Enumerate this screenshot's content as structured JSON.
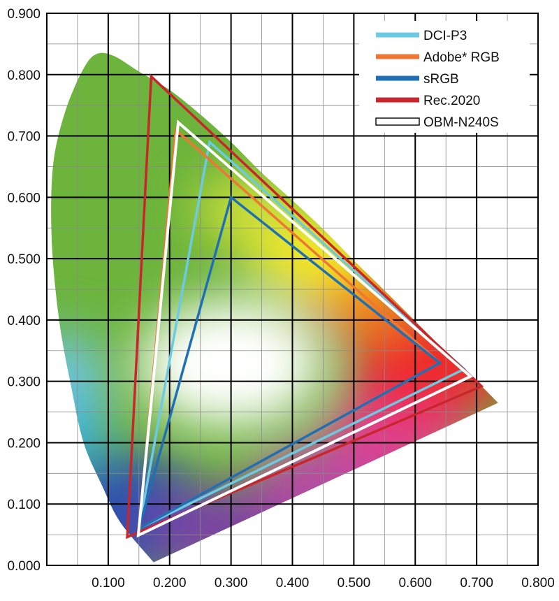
{
  "chart_data": {
    "type": "scatter",
    "title": "",
    "xlabel": "",
    "ylabel": "",
    "xlim": [
      0,
      0.8
    ],
    "ylim": [
      0,
      0.9
    ],
    "grid": true,
    "legend_position": "top-right",
    "x_ticks": [
      "0.100",
      "0.200",
      "0.300",
      "0.400",
      "0.500",
      "0.600",
      "0.700",
      "0.800"
    ],
    "y_ticks": [
      "0.000",
      "0.100",
      "0.200",
      "0.300",
      "0.400",
      "0.500",
      "0.600",
      "0.700",
      "0.800",
      "0.900"
    ],
    "spectral_locus": [
      [
        0.174,
        0.005
      ],
      [
        0.12,
        0.07
      ],
      [
        0.09,
        0.13
      ],
      [
        0.06,
        0.2
      ],
      [
        0.04,
        0.29
      ],
      [
        0.02,
        0.4
      ],
      [
        0.008,
        0.53
      ],
      [
        0.01,
        0.65
      ],
      [
        0.03,
        0.74
      ],
      [
        0.06,
        0.81
      ],
      [
        0.082,
        0.834
      ],
      [
        0.11,
        0.83
      ],
      [
        0.15,
        0.805
      ],
      [
        0.2,
        0.775
      ],
      [
        0.25,
        0.735
      ],
      [
        0.3,
        0.69
      ],
      [
        0.35,
        0.64
      ],
      [
        0.4,
        0.595
      ],
      [
        0.45,
        0.548
      ],
      [
        0.5,
        0.497
      ],
      [
        0.55,
        0.448
      ],
      [
        0.6,
        0.398
      ],
      [
        0.65,
        0.348
      ],
      [
        0.7,
        0.3
      ],
      [
        0.735,
        0.265
      ]
    ],
    "series": [
      {
        "name": "DCI-P3",
        "color": "#6ccbe3",
        "swatch": "line",
        "points": [
          [
            0.68,
            0.32
          ],
          [
            0.265,
            0.69
          ],
          [
            0.15,
            0.06
          ]
        ]
      },
      {
        "name": "Adobe* RGB",
        "color": "#ee7733",
        "swatch": "line",
        "points": [
          [
            0.64,
            0.33
          ],
          [
            0.21,
            0.71
          ],
          [
            0.15,
            0.06
          ]
        ]
      },
      {
        "name": "sRGB",
        "color": "#1f6fb5",
        "swatch": "line",
        "points": [
          [
            0.64,
            0.33
          ],
          [
            0.3,
            0.6
          ],
          [
            0.15,
            0.06
          ]
        ]
      },
      {
        "name": "Rec.2020",
        "color": "#c8262b",
        "swatch": "line",
        "points": [
          [
            0.708,
            0.292
          ],
          [
            0.17,
            0.797
          ],
          [
            0.131,
            0.046
          ]
        ]
      },
      {
        "name": "OBM-N240S",
        "color": "#ffffff",
        "swatch": "box",
        "points": [
          [
            0.69,
            0.308
          ],
          [
            0.214,
            0.722
          ],
          [
            0.149,
            0.049
          ]
        ]
      }
    ]
  }
}
